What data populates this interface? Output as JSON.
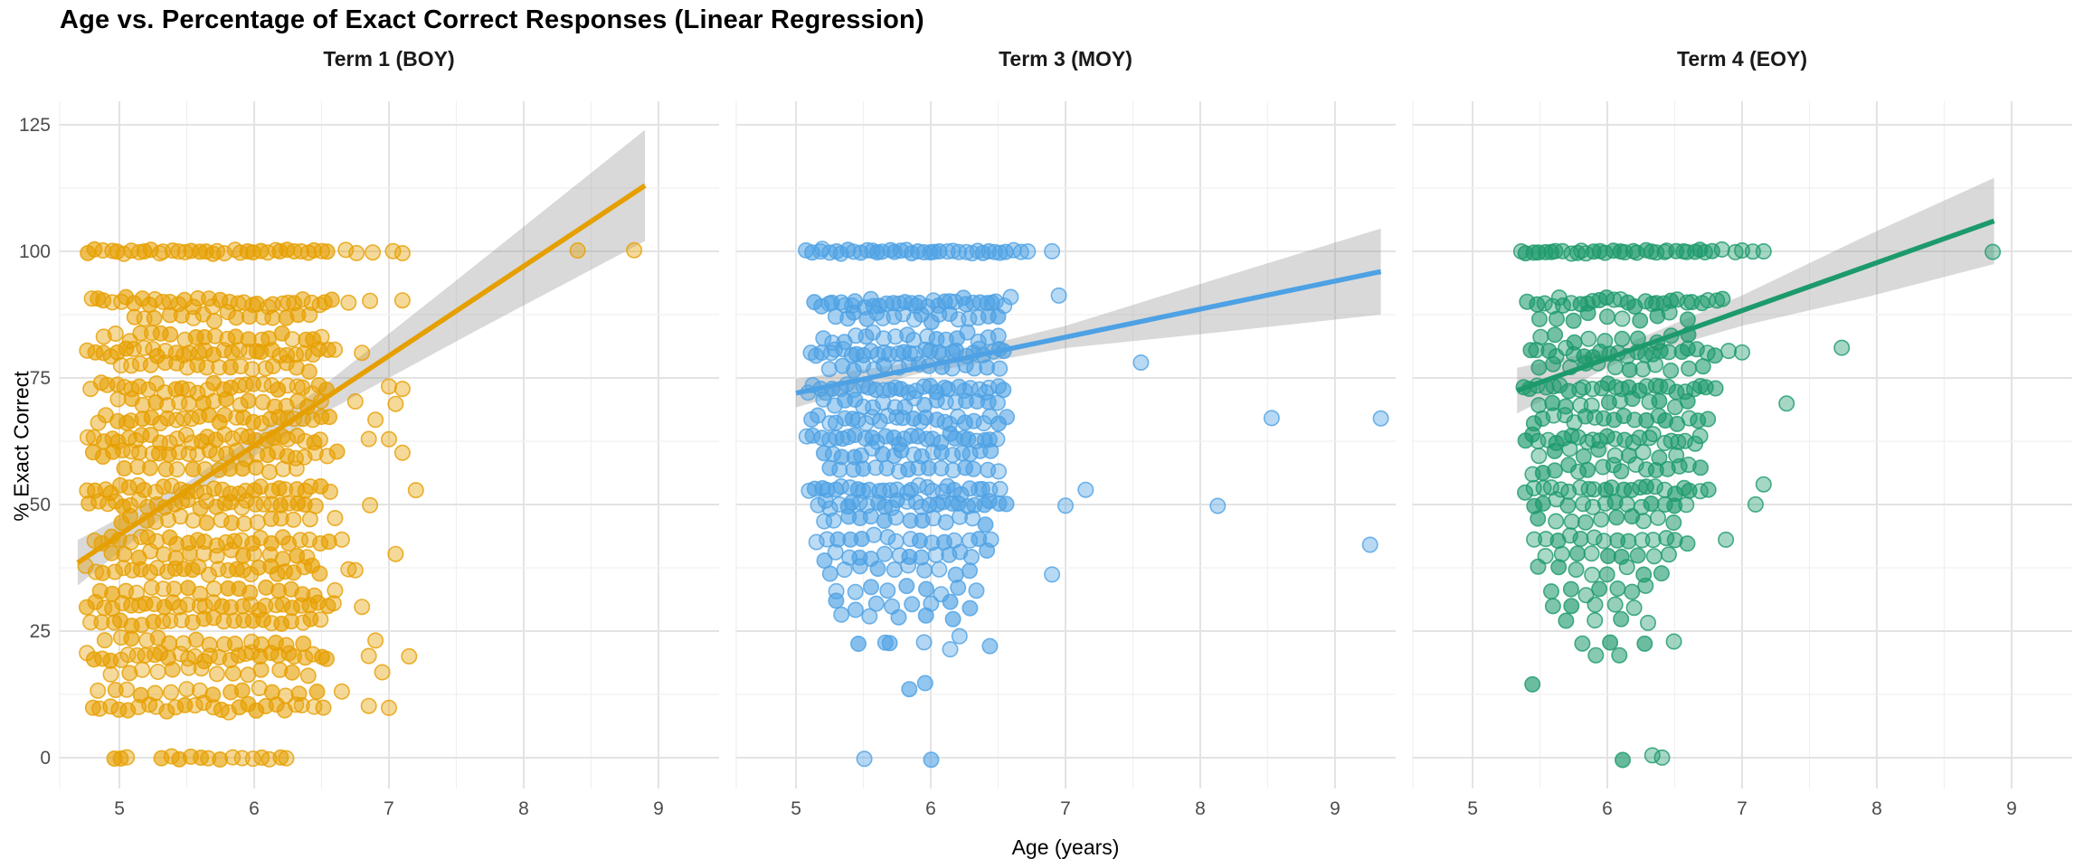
{
  "title": "Age vs. Percentage of Exact Correct Responses (Linear Regression)",
  "x_axis": {
    "label": "Age (years)",
    "ticks": [
      5,
      6,
      7,
      8,
      9
    ]
  },
  "y_axis": {
    "label": "% Exact Correct",
    "ticks": [
      0,
      25,
      50,
      75,
      100,
      125
    ]
  },
  "colors": {
    "term1": "#E69F00",
    "term3": "#4DA1E4",
    "term4": "#1D9A6C",
    "ci_band": "#9B9B9B",
    "grid_major": "#E3E3E3",
    "grid_minor": "#F0F0F0",
    "tick_text": "#4D4D4D",
    "background": "#FFFFFF"
  },
  "chart_data": [
    {
      "type": "scatter",
      "title": "Term 1 (BOY)",
      "series_color": "#E69F00",
      "x_domain": [
        4.55,
        9.45
      ],
      "y_domain": [
        -6,
        129
      ],
      "x_ticks": [
        5,
        6,
        7,
        8,
        9
      ],
      "y_ticks": [
        0,
        25,
        50,
        75,
        100,
        125
      ],
      "grid": true,
      "regression": {
        "x": [
          4.69,
          8.9
        ],
        "y": [
          38.5,
          113
        ]
      },
      "ci": {
        "x": [
          4.69,
          5.5,
          6.5,
          7.7,
          8.9
        ],
        "upper": [
          43.0,
          54.3,
          73.2,
          98.5,
          124.0
        ],
        "lower": [
          34.0,
          51.3,
          67.8,
          85.1,
          102.0
        ]
      },
      "point_rows": [
        [
          100,
          4.78,
          6.55,
          36
        ],
        [
          90,
          4.78,
          6.58,
          34
        ],
        [
          87,
          5.1,
          6.4,
          16
        ],
        [
          83,
          4.9,
          6.45,
          20
        ],
        [
          80,
          4.76,
          6.6,
          32
        ],
        [
          77,
          5.0,
          6.4,
          18
        ],
        [
          73,
          4.8,
          6.55,
          30
        ],
        [
          70,
          5.0,
          6.5,
          18
        ],
        [
          67,
          4.85,
          6.55,
          28
        ],
        [
          63,
          4.76,
          6.5,
          30
        ],
        [
          60,
          4.8,
          6.6,
          26
        ],
        [
          57,
          5.05,
          6.3,
          14
        ],
        [
          53,
          4.76,
          6.55,
          30
        ],
        [
          50,
          4.78,
          6.45,
          28
        ],
        [
          47,
          5.0,
          6.4,
          16
        ],
        [
          43,
          4.8,
          6.55,
          26
        ],
        [
          40,
          4.95,
          6.4,
          16
        ],
        [
          37,
          4.76,
          6.5,
          28
        ],
        [
          33,
          4.85,
          6.45,
          18
        ],
        [
          30,
          4.76,
          6.6,
          30
        ],
        [
          27,
          4.8,
          6.5,
          24
        ],
        [
          23,
          4.9,
          6.35,
          16
        ],
        [
          20,
          4.76,
          6.55,
          30
        ],
        [
          17,
          4.95,
          6.4,
          14
        ],
        [
          13,
          4.85,
          6.45,
          16
        ],
        [
          10,
          4.8,
          6.5,
          26
        ],
        [
          0,
          4.95,
          5.05,
          3
        ],
        [
          0,
          5.3,
          5.9,
          9
        ],
        [
          0,
          6.0,
          6.25,
          5
        ]
      ],
      "extra_points": [
        [
          6.68,
          100
        ],
        [
          6.76,
          100
        ],
        [
          6.88,
          100
        ],
        [
          7.03,
          100
        ],
        [
          7.1,
          100
        ],
        [
          8.4,
          100
        ],
        [
          8.82,
          100
        ],
        [
          6.7,
          90
        ],
        [
          6.86,
          90
        ],
        [
          7.1,
          90
        ],
        [
          6.5,
          83
        ],
        [
          6.8,
          80
        ],
        [
          7.0,
          73
        ],
        [
          7.1,
          73
        ],
        [
          6.75,
          70
        ],
        [
          7.05,
          70
        ],
        [
          6.9,
          67
        ],
        [
          6.85,
          63
        ],
        [
          7.0,
          63
        ],
        [
          7.1,
          60
        ],
        [
          7.2,
          53
        ],
        [
          6.86,
          50
        ],
        [
          6.6,
          47
        ],
        [
          6.65,
          43
        ],
        [
          7.05,
          40
        ],
        [
          6.7,
          37
        ],
        [
          6.75,
          37
        ],
        [
          6.6,
          33
        ],
        [
          6.8,
          30
        ],
        [
          6.9,
          23
        ],
        [
          6.85,
          20
        ],
        [
          7.15,
          20
        ],
        [
          6.95,
          17
        ],
        [
          6.65,
          13
        ],
        [
          6.85,
          10
        ],
        [
          7.0,
          10
        ]
      ]
    },
    {
      "type": "scatter",
      "title": "Term 3 (MOY)",
      "series_color": "#4DA1E4",
      "x_domain": [
        4.55,
        9.45
      ],
      "y_domain": [
        -6,
        129
      ],
      "x_ticks": [
        5,
        6,
        7,
        8,
        9
      ],
      "y_ticks": [
        0,
        25,
        50,
        75,
        100,
        125
      ],
      "grid": true,
      "regression": {
        "x": [
          5.0,
          9.34
        ],
        "y": [
          72,
          96
        ]
      },
      "ci": {
        "x": [
          5.0,
          5.9,
          7.0,
          8.2,
          9.34
        ],
        "upper": [
          74.8,
          78.2,
          85.3,
          95.2,
          104.5
        ],
        "lower": [
          69.2,
          75.8,
          80.9,
          84.2,
          87.5
        ]
      },
      "point_rows": [
        [
          100,
          5.08,
          6.6,
          36
        ],
        [
          90,
          5.15,
          6.58,
          34
        ],
        [
          87,
          5.3,
          6.5,
          18
        ],
        [
          83,
          5.2,
          6.5,
          18
        ],
        [
          80,
          5.1,
          6.55,
          30
        ],
        [
          77,
          5.25,
          6.5,
          16
        ],
        [
          73,
          5.08,
          6.55,
          30
        ],
        [
          70,
          5.2,
          6.5,
          18
        ],
        [
          67,
          5.12,
          6.55,
          26
        ],
        [
          63,
          5.08,
          6.5,
          28
        ],
        [
          60,
          5.2,
          6.45,
          18
        ],
        [
          57,
          5.25,
          6.5,
          16
        ],
        [
          53,
          5.08,
          6.5,
          28
        ],
        [
          50,
          5.15,
          6.55,
          26
        ],
        [
          47,
          5.2,
          6.4,
          14
        ],
        [
          43,
          5.15,
          6.45,
          16
        ],
        [
          40,
          5.2,
          6.4,
          14
        ],
        [
          37,
          5.25,
          6.3,
          10
        ],
        [
          33,
          5.3,
          6.35,
          9
        ],
        [
          30,
          5.3,
          6.3,
          8
        ],
        [
          28,
          5.35,
          6.15,
          5
        ],
        [
          23,
          5.45,
          6.45,
          5
        ],
        [
          22,
          5.65,
          6.15,
          2
        ],
        [
          15,
          5.95,
          5.95,
          1
        ],
        [
          13,
          5.85,
          5.85,
          1
        ],
        [
          0,
          5.52,
          5.52,
          1
        ],
        [
          0,
          6.0,
          6.0,
          1
        ]
      ],
      "extra_points": [
        [
          6.67,
          100
        ],
        [
          6.72,
          100
        ],
        [
          6.9,
          100
        ],
        [
          6.95,
          91
        ],
        [
          7.56,
          78
        ],
        [
          8.53,
          67
        ],
        [
          9.34,
          67
        ],
        [
          7.15,
          53
        ],
        [
          8.13,
          50
        ],
        [
          7.0,
          50
        ],
        [
          9.26,
          42
        ],
        [
          6.9,
          36
        ]
      ]
    },
    {
      "type": "scatter",
      "title": "Term 4 (EOY)",
      "series_color": "#1D9A6C",
      "x_domain": [
        4.55,
        9.45
      ],
      "y_domain": [
        -6,
        129
      ],
      "x_ticks": [
        5,
        6,
        7,
        8,
        9
      ],
      "y_ticks": [
        0,
        25,
        50,
        75,
        100,
        125
      ],
      "grid": true,
      "regression": {
        "x": [
          5.33,
          8.87
        ],
        "y": [
          72.5,
          106
        ]
      },
      "ci": {
        "x": [
          5.33,
          6.1,
          7.0,
          7.9,
          8.87
        ],
        "upper": [
          77.0,
          81.3,
          91.3,
          102.8,
          114.5
        ],
        "lower": [
          68.0,
          78.3,
          85.3,
          90.8,
          97.5
        ]
      },
      "point_rows": [
        [
          100,
          5.35,
          6.78,
          32
        ],
        [
          90,
          5.42,
          6.85,
          28
        ],
        [
          87,
          5.5,
          6.6,
          10
        ],
        [
          83,
          5.5,
          6.6,
          10
        ],
        [
          80,
          5.42,
          6.8,
          22
        ],
        [
          77,
          5.5,
          6.7,
          12
        ],
        [
          73,
          5.38,
          6.8,
          26
        ],
        [
          70,
          5.5,
          6.6,
          12
        ],
        [
          67,
          5.45,
          6.75,
          18
        ],
        [
          63,
          5.38,
          6.7,
          24
        ],
        [
          60,
          5.5,
          6.5,
          10
        ],
        [
          57,
          5.45,
          6.7,
          16
        ],
        [
          53,
          5.4,
          6.75,
          22
        ],
        [
          50,
          5.45,
          6.6,
          14
        ],
        [
          47,
          5.5,
          6.5,
          10
        ],
        [
          43,
          5.45,
          6.6,
          14
        ],
        [
          40,
          5.55,
          6.45,
          9
        ],
        [
          37,
          5.5,
          6.4,
          8
        ],
        [
          33,
          5.6,
          6.3,
          7
        ],
        [
          30,
          5.6,
          6.2,
          5
        ],
        [
          27,
          5.7,
          6.3,
          4
        ],
        [
          23,
          5.8,
          6.5,
          4
        ],
        [
          20,
          5.9,
          6.1,
          2
        ],
        [
          15,
          5.45,
          5.45,
          1
        ],
        [
          0,
          6.1,
          6.1,
          1
        ],
        [
          0,
          6.35,
          6.42,
          2
        ]
      ],
      "extra_points": [
        [
          6.85,
          100
        ],
        [
          6.95,
          100
        ],
        [
          7.0,
          100
        ],
        [
          7.08,
          100
        ],
        [
          7.16,
          100
        ],
        [
          8.86,
          100
        ],
        [
          7.74,
          81
        ],
        [
          6.9,
          80
        ],
        [
          7.0,
          80
        ],
        [
          7.33,
          70
        ],
        [
          7.16,
          54
        ],
        [
          7.1,
          50
        ],
        [
          6.88,
          43
        ]
      ]
    }
  ]
}
